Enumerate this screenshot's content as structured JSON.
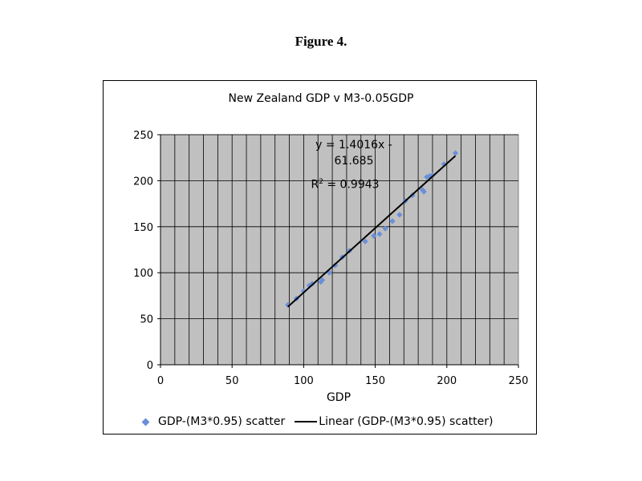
{
  "figure_caption": "Figure 4.",
  "chart_data": {
    "type": "scatter",
    "title": "New Zealand GDP v  M3-0.05GDP",
    "xlabel": "GDP",
    "ylabel": "",
    "xlim": [
      0,
      250
    ],
    "ylim": [
      0,
      250
    ],
    "x_ticks": [
      0,
      50,
      100,
      150,
      200,
      250
    ],
    "y_ticks": [
      0,
      50,
      100,
      150,
      200,
      250
    ],
    "grid": true,
    "legend_position": "bottom",
    "plot_background": "#c0c0c0",
    "series": [
      {
        "name": "GDP-(M3*0.95) scatter",
        "color": "#6a8fd8",
        "marker": "diamond",
        "points": [
          [
            89,
            65
          ],
          [
            95,
            72
          ],
          [
            100,
            80
          ],
          [
            104,
            86
          ],
          [
            106,
            88
          ],
          [
            112,
            90
          ],
          [
            113,
            92
          ],
          [
            118,
            100
          ],
          [
            122,
            108
          ],
          [
            127,
            117
          ],
          [
            132,
            124
          ],
          [
            143,
            134
          ],
          [
            149,
            140
          ],
          [
            153,
            142
          ],
          [
            157,
            148
          ],
          [
            162,
            156
          ],
          [
            167,
            163
          ],
          [
            171,
            178
          ],
          [
            176,
            184
          ],
          [
            183,
            190
          ],
          [
            184,
            188
          ],
          [
            186,
            204
          ],
          [
            188,
            205
          ],
          [
            190,
            206
          ],
          [
            198,
            218
          ],
          [
            206,
            230
          ]
        ]
      },
      {
        "name": "Linear (GDP-(M3*0.95) scatter)",
        "color": "#000000",
        "type": "trendline",
        "slope": 1.4016,
        "intercept": -61.685,
        "x_range": [
          89,
          206
        ]
      }
    ],
    "annotation": {
      "equation_line1": "y = 1.4016x -",
      "equation_line2": "61.685",
      "r2_label": "R",
      "r2_sup": "2",
      "r2_value": " = 0.9943"
    }
  }
}
